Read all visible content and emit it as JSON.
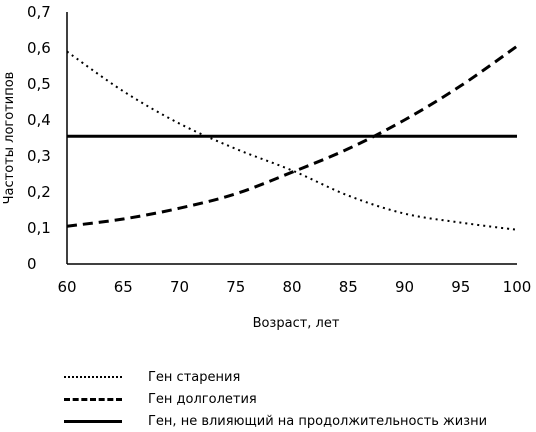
{
  "chart_data": {
    "type": "line",
    "xlabel": "Возраст, лет",
    "ylabel": "Частоты логотипов",
    "xlim": [
      60,
      100
    ],
    "ylim": [
      0,
      0.7
    ],
    "x_ticks": [
      "60",
      "65",
      "70",
      "75",
      "80",
      "85",
      "90",
      "95",
      "100"
    ],
    "y_ticks": [
      "0",
      "0,1",
      "0,2",
      "0,3",
      "0,4",
      "0,5",
      "0,6",
      "0,7"
    ],
    "x": [
      60,
      65,
      70,
      75,
      80,
      85,
      90,
      95,
      100
    ],
    "series": [
      {
        "name": "Ген старения",
        "style": "dotted",
        "values": [
          0.59,
          0.48,
          0.39,
          0.32,
          0.26,
          0.19,
          0.14,
          0.115,
          0.095
        ]
      },
      {
        "name": "Ген долголетия",
        "style": "dashed",
        "values": [
          0.105,
          0.125,
          0.155,
          0.195,
          0.255,
          0.32,
          0.4,
          0.495,
          0.605
        ]
      },
      {
        "name": "Ген, не влияющий на продолжительность жизни",
        "style": "solid",
        "values": [
          0.355,
          0.355,
          0.355,
          0.355,
          0.355,
          0.355,
          0.355,
          0.355,
          0.355
        ]
      }
    ],
    "grid": false,
    "legend_position": "bottom"
  }
}
